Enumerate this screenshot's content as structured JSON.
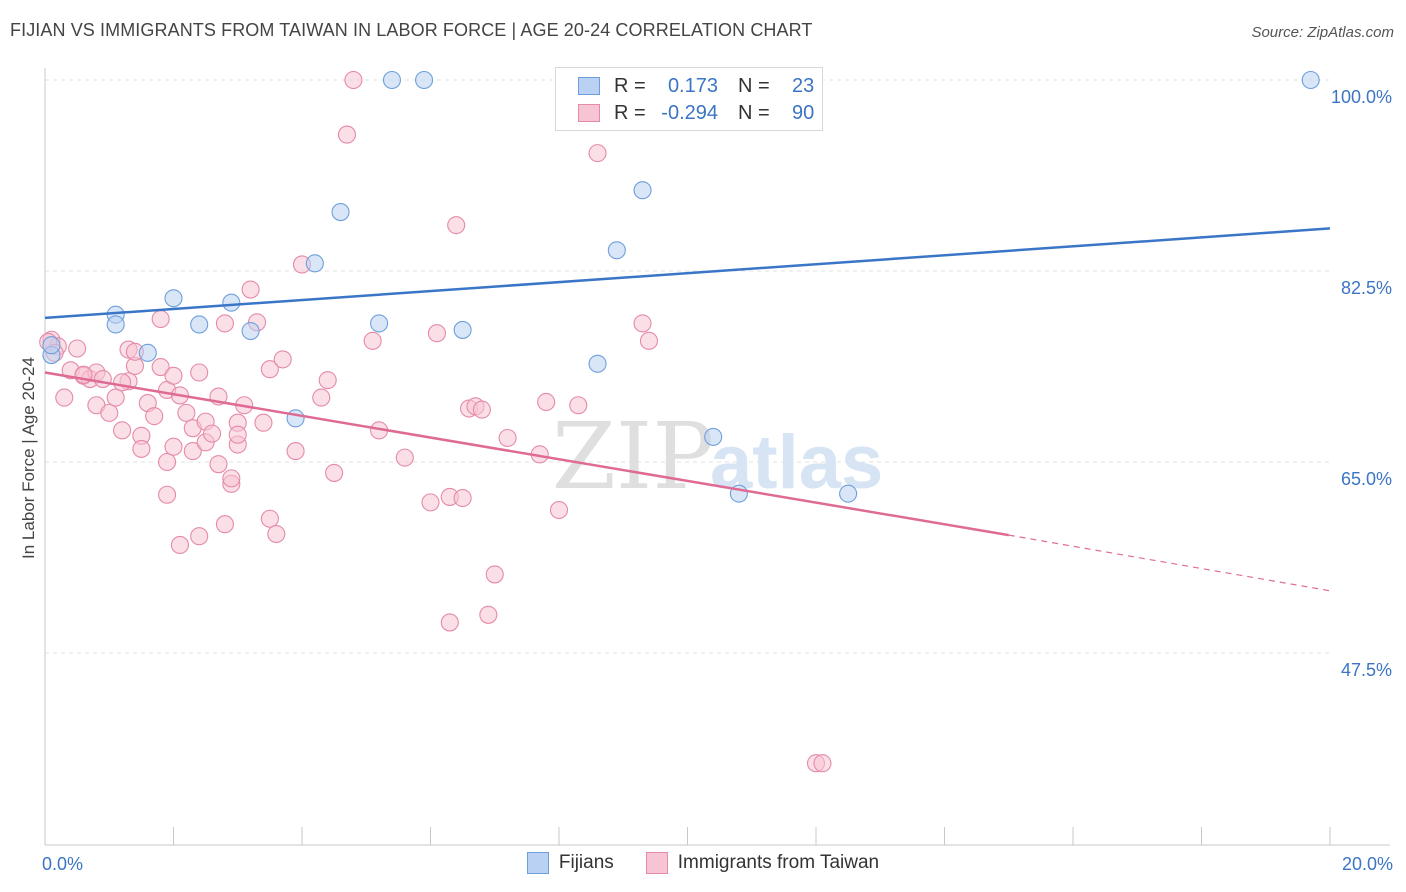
{
  "header": {
    "title": "FIJIAN VS IMMIGRANTS FROM TAIWAN IN LABOR FORCE | AGE 20-24 CORRELATION CHART",
    "source": "Source: ZipAtlas.com"
  },
  "legend": {
    "r_label": "R =",
    "n_label": "N =",
    "fijians": {
      "r": "0.173",
      "n": "23"
    },
    "taiwan": {
      "r": "-0.294",
      "n": "90"
    }
  },
  "colors": {
    "fijians_fill": "#b9d2f3",
    "fijians_stroke": "#6f9fdb",
    "fijians_line": "#3a76c8",
    "taiwan_fill": "#f7c4d4",
    "taiwan_stroke": "#e58aa8",
    "taiwan_line": "#df6b95",
    "tick_label": "#3b75c4",
    "grid": "#e2e2e2"
  },
  "watermark": {
    "zip": "ZIP",
    "atlas": "atlas"
  },
  "chart_data": {
    "type": "scatter",
    "ylabel": "In Labor Force | Age 20-24",
    "xlim": [
      0.0,
      20.0
    ],
    "ylim": [
      30.0,
      102.0
    ],
    "x_tick_labels": {
      "min": "0.0%",
      "max": "20.0%"
    },
    "y_ticks": [
      {
        "value": 100.0,
        "label": "100.0%"
      },
      {
        "value": 82.5,
        "label": "82.5%"
      },
      {
        "value": 65.0,
        "label": "65.0%"
      },
      {
        "value": 47.5,
        "label": "47.5%"
      }
    ],
    "grid": true,
    "legend_position": "top-center",
    "series": [
      {
        "name": "Fijians",
        "trend": {
          "x0": 0.0,
          "y0": 78.2,
          "x1": 20.0,
          "y1": 86.4
        },
        "points": [
          [
            0.1,
            74.8
          ],
          [
            1.1,
            78.5
          ],
          [
            1.1,
            77.6
          ],
          [
            1.6,
            75.0
          ],
          [
            2.0,
            80.0
          ],
          [
            2.4,
            77.6
          ],
          [
            2.9,
            79.6
          ],
          [
            3.2,
            77.0
          ],
          [
            3.9,
            69.0
          ],
          [
            4.2,
            83.2
          ],
          [
            4.6,
            87.9
          ],
          [
            5.2,
            77.7
          ],
          [
            5.4,
            100.0
          ],
          [
            5.9,
            100.0
          ],
          [
            6.5,
            77.1
          ],
          [
            8.6,
            74.0
          ],
          [
            8.9,
            84.4
          ],
          [
            9.3,
            89.9
          ],
          [
            10.4,
            67.3
          ],
          [
            10.8,
            62.1
          ],
          [
            12.5,
            62.1
          ],
          [
            19.7,
            100.0
          ],
          [
            0.1,
            75.7
          ]
        ]
      },
      {
        "name": "Immigrants from Taiwan",
        "trend": {
          "x0": 0.0,
          "y0": 73.2,
          "x1": 15.0,
          "y1": 58.3
        },
        "trend_dashed": {
          "x0": 15.0,
          "y0": 58.3,
          "x1": 20.0,
          "y1": 53.2
        },
        "points": [
          [
            0.1,
            76.2
          ],
          [
            0.2,
            75.6
          ],
          [
            0.3,
            70.9
          ],
          [
            0.4,
            73.4
          ],
          [
            0.5,
            75.4
          ],
          [
            0.6,
            72.9
          ],
          [
            0.7,
            72.6
          ],
          [
            0.8,
            73.2
          ],
          [
            0.9,
            72.6
          ],
          [
            0.8,
            70.2
          ],
          [
            1.0,
            69.5
          ],
          [
            1.1,
            70.9
          ],
          [
            1.2,
            67.9
          ],
          [
            1.3,
            72.4
          ],
          [
            1.3,
            75.3
          ],
          [
            1.4,
            73.8
          ],
          [
            1.5,
            67.4
          ],
          [
            1.5,
            66.2
          ],
          [
            1.6,
            70.4
          ],
          [
            1.7,
            69.2
          ],
          [
            1.8,
            78.1
          ],
          [
            1.8,
            73.7
          ],
          [
            1.9,
            71.6
          ],
          [
            1.9,
            65.0
          ],
          [
            1.9,
            62.0
          ],
          [
            2.0,
            72.9
          ],
          [
            2.1,
            57.4
          ],
          [
            2.1,
            71.1
          ],
          [
            2.2,
            69.5
          ],
          [
            2.3,
            68.1
          ],
          [
            2.3,
            66.0
          ],
          [
            2.4,
            58.2
          ],
          [
            2.4,
            73.2
          ],
          [
            2.5,
            66.8
          ],
          [
            2.5,
            68.7
          ],
          [
            2.6,
            67.6
          ],
          [
            2.7,
            71.0
          ],
          [
            2.7,
            64.8
          ],
          [
            2.8,
            59.3
          ],
          [
            2.8,
            77.7
          ],
          [
            2.9,
            63.0
          ],
          [
            2.9,
            63.5
          ],
          [
            3.0,
            68.6
          ],
          [
            3.0,
            66.6
          ],
          [
            3.1,
            70.2
          ],
          [
            3.2,
            80.8
          ],
          [
            3.3,
            77.8
          ],
          [
            3.4,
            68.6
          ],
          [
            3.5,
            73.5
          ],
          [
            3.5,
            59.8
          ],
          [
            3.6,
            58.4
          ],
          [
            3.7,
            74.4
          ],
          [
            3.9,
            66.0
          ],
          [
            4.0,
            83.1
          ],
          [
            4.3,
            70.9
          ],
          [
            4.4,
            72.5
          ],
          [
            4.5,
            64.0
          ],
          [
            4.7,
            95.0
          ],
          [
            4.8,
            100.0
          ],
          [
            5.1,
            76.1
          ],
          [
            5.2,
            67.9
          ],
          [
            5.6,
            65.4
          ],
          [
            6.0,
            61.3
          ],
          [
            6.1,
            76.8
          ],
          [
            6.3,
            61.8
          ],
          [
            6.3,
            50.3
          ],
          [
            6.5,
            61.7
          ],
          [
            6.4,
            86.7
          ],
          [
            6.6,
            69.9
          ],
          [
            6.7,
            70.1
          ],
          [
            6.8,
            69.8
          ],
          [
            6.9,
            51.0
          ],
          [
            7.0,
            54.7
          ],
          [
            7.2,
            67.2
          ],
          [
            7.7,
            65.7
          ],
          [
            7.8,
            70.5
          ],
          [
            8.0,
            60.6
          ],
          [
            8.3,
            70.2
          ],
          [
            8.6,
            93.3
          ],
          [
            9.3,
            77.7
          ],
          [
            9.4,
            76.1
          ],
          [
            12.0,
            37.4
          ],
          [
            12.1,
            37.4
          ],
          [
            0.05,
            76.0
          ],
          [
            0.15,
            75.0
          ],
          [
            1.4,
            75.1
          ],
          [
            0.6,
            73.0
          ],
          [
            1.2,
            72.3
          ],
          [
            2.0,
            66.4
          ],
          [
            3.0,
            67.5
          ]
        ]
      }
    ]
  }
}
